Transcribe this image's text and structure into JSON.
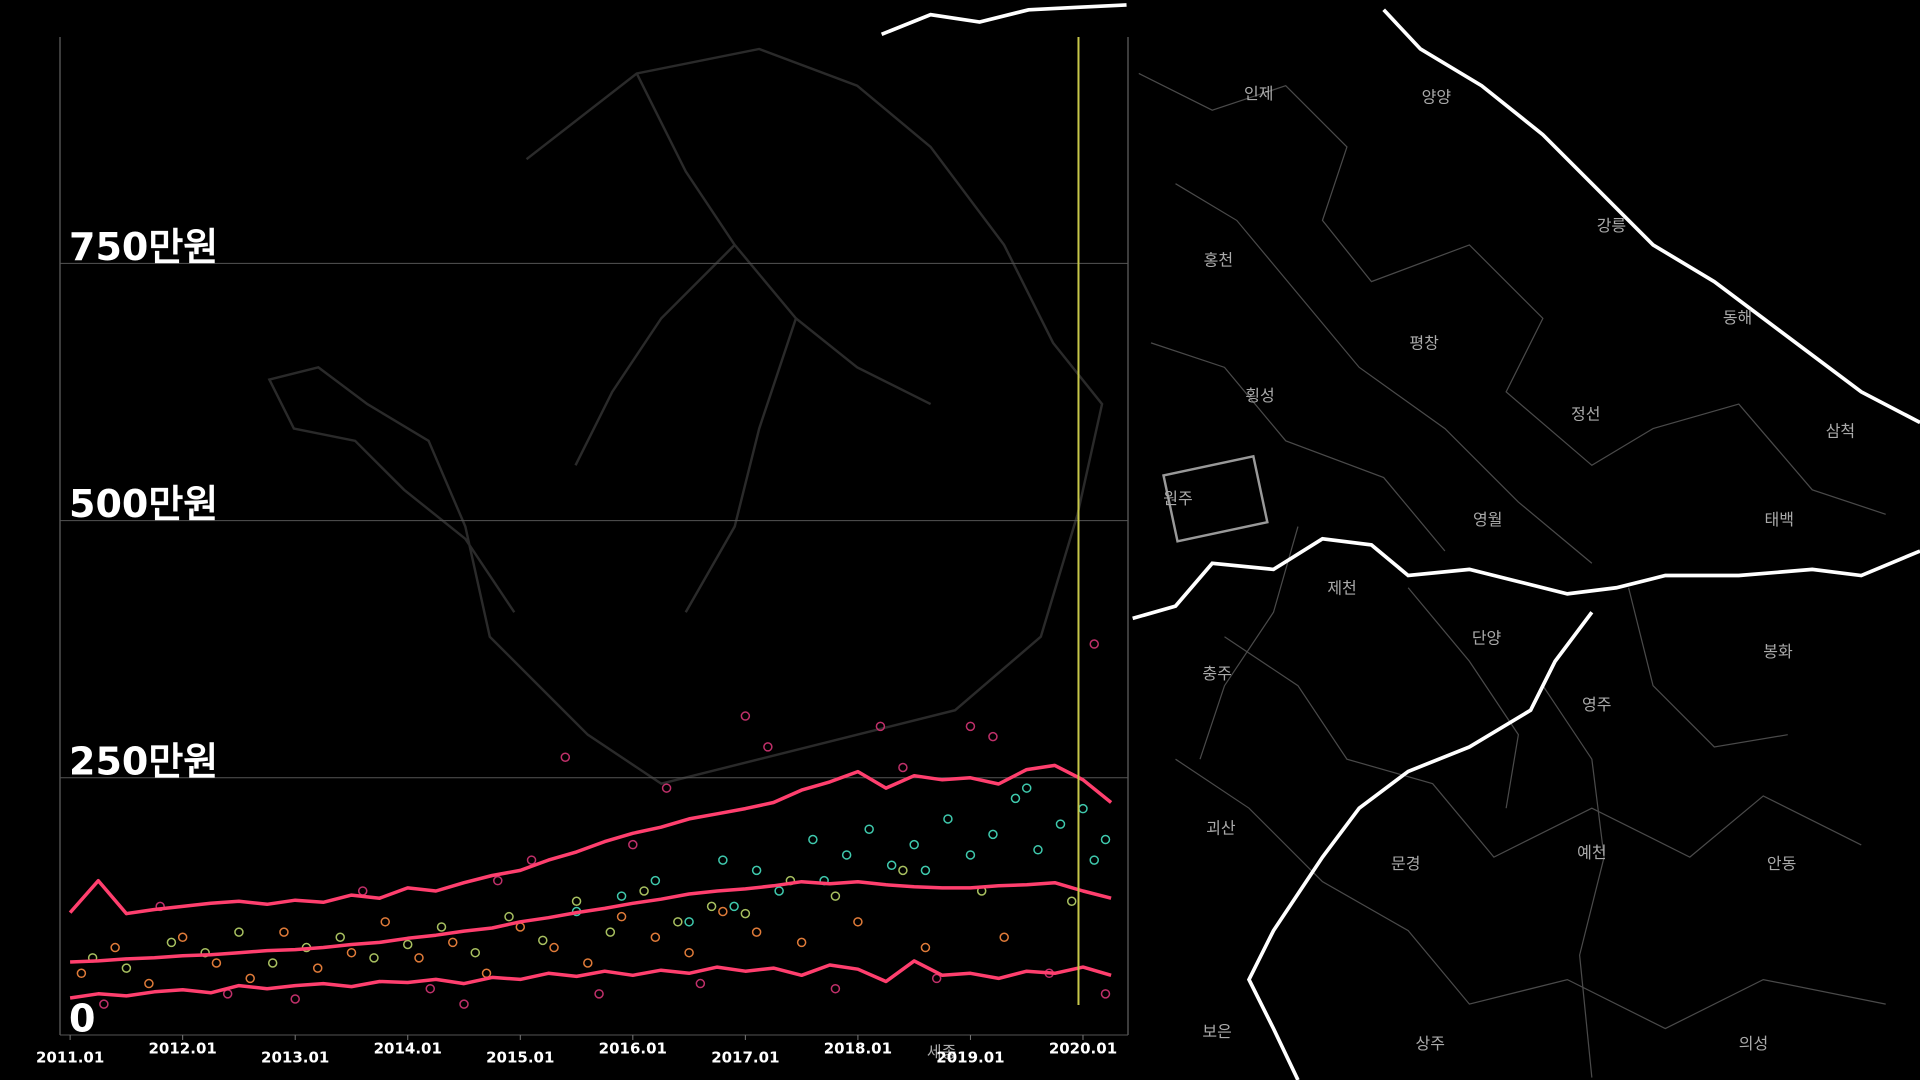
{
  "chart_data": {
    "type": "scatter",
    "xlim": [
      2010.91,
      2020.4
    ],
    "xticks": [
      {
        "value": 2011,
        "label": "2011.01"
      },
      {
        "value": 2012,
        "label": "2012.01"
      },
      {
        "value": 2013,
        "label": "2013.01"
      },
      {
        "value": 2014,
        "label": "2014.01"
      },
      {
        "value": 2015,
        "label": "2015.01"
      },
      {
        "value": 2016,
        "label": "2016.01"
      },
      {
        "value": 2017,
        "label": "2017.01"
      },
      {
        "value": 2018,
        "label": "2018.01"
      },
      {
        "value": 2019,
        "label": "2019.01"
      },
      {
        "value": 2020,
        "label": "2020.01"
      }
    ],
    "ylim": [
      0,
      970
    ],
    "yticks": [
      0,
      {
        "value": 250,
        "label": "250만원"
      },
      {
        "value": 500,
        "label": "500만원"
      },
      {
        "value": 750,
        "label": "750만원"
      }
    ],
    "grid": true,
    "highlight_x": 2019.96,
    "series": [
      {
        "color": "#3fc9ad",
        "x": [
          2015.5,
          2015.9,
          2016.2,
          2016.5,
          2016.8,
          2017.1,
          2017.3,
          2017.6,
          2017.9,
          2018.1,
          2018.3,
          2018.5,
          2018.8,
          2019.0,
          2019.2,
          2019.4,
          2019.6,
          2019.8,
          2020.0,
          2020.1,
          2020.2,
          2016.9,
          2017.7,
          2018.6,
          2019.5
        ],
        "values": [
          120,
          135,
          150,
          110,
          170,
          160,
          140,
          190,
          175,
          200,
          165,
          185,
          210,
          175,
          195,
          230,
          180,
          205,
          220,
          170,
          190,
          125,
          150,
          160,
          240
        ]
      },
      {
        "color": "#e07b39",
        "x": [
          2011.1,
          2011.4,
          2011.7,
          2012.0,
          2012.3,
          2012.6,
          2012.9,
          2013.2,
          2013.5,
          2013.8,
          2014.1,
          2014.4,
          2014.7,
          2015.0,
          2015.3,
          2015.6,
          2015.9,
          2016.2,
          2016.5,
          2016.8,
          2017.1,
          2017.5,
          2018.0,
          2018.6,
          2019.3
        ],
        "values": [
          60,
          85,
          50,
          95,
          70,
          55,
          100,
          65,
          80,
          110,
          75,
          90,
          60,
          105,
          85,
          70,
          115,
          95,
          80,
          120,
          100,
          90,
          110,
          85,
          95
        ]
      },
      {
        "color": "#a8c060",
        "x": [
          2011.2,
          2011.5,
          2011.9,
          2012.2,
          2012.5,
          2012.8,
          2013.1,
          2013.4,
          2013.7,
          2014.0,
          2014.3,
          2014.6,
          2014.9,
          2015.2,
          2015.5,
          2015.8,
          2016.1,
          2016.4,
          2016.7,
          2017.0,
          2017.4,
          2017.8,
          2018.4,
          2019.1,
          2019.9
        ],
        "values": [
          75,
          65,
          90,
          80,
          100,
          70,
          85,
          95,
          75,
          88,
          105,
          80,
          115,
          92,
          130,
          100,
          140,
          110,
          125,
          118,
          150,
          135,
          160,
          140,
          130
        ]
      },
      {
        "color": "#c0306a",
        "x": [
          2011.3,
          2011.8,
          2012.4,
          2013.0,
          2013.6,
          2014.2,
          2014.8,
          2015.4,
          2015.7,
          2016.0,
          2016.6,
          2017.2,
          2017.8,
          2018.2,
          2018.7,
          2019.2,
          2019.7,
          2020.1,
          2020.2,
          2016.3,
          2017.0,
          2018.4,
          2019.0,
          2015.1,
          2014.5
        ],
        "values": [
          30,
          125,
          40,
          35,
          140,
          45,
          150,
          270,
          40,
          185,
          50,
          280,
          45,
          300,
          55,
          290,
          60,
          380,
          40,
          240,
          310,
          260,
          300,
          170,
          30
        ]
      }
    ],
    "lines": {
      "x": [
        2011,
        2011.25,
        2011.5,
        2011.75,
        2012,
        2012.25,
        2012.5,
        2012.75,
        2013,
        2013.25,
        2013.5,
        2013.75,
        2014,
        2014.25,
        2014.5,
        2014.75,
        2015,
        2015.25,
        2015.5,
        2015.75,
        2016,
        2016.25,
        2016.5,
        2016.75,
        2017,
        2017.25,
        2017.5,
        2017.75,
        2018,
        2018.25,
        2018.5,
        2018.75,
        2019,
        2019.25,
        2019.5,
        2019.75,
        2020,
        2020.25
      ],
      "series": [
        {
          "color": "#ff3f6e",
          "values": [
            119,
            150,
            118,
            122,
            125,
            128,
            130,
            127,
            131,
            129,
            136,
            133,
            143,
            140,
            148,
            155,
            160,
            170,
            178,
            188,
            196,
            202,
            210,
            215,
            220,
            226,
            238,
            246,
            256,
            240,
            252,
            248,
            250,
            244,
            258,
            262,
            248,
            226
          ]
        },
        {
          "color": "#ff3f6e",
          "values": [
            71,
            72,
            74,
            75,
            77,
            78,
            80,
            82,
            83,
            85,
            88,
            90,
            94,
            97,
            101,
            104,
            110,
            114,
            119,
            123,
            128,
            132,
            137,
            140,
            142,
            145,
            149,
            147,
            149,
            146,
            144,
            143,
            143,
            145,
            146,
            148,
            140,
            133
          ]
        },
        {
          "color": "#ff3f6e",
          "values": [
            36,
            40,
            38,
            42,
            44,
            41,
            48,
            45,
            48,
            50,
            47,
            52,
            51,
            54,
            50,
            56,
            54,
            60,
            57,
            62,
            58,
            63,
            60,
            66,
            62,
            65,
            58,
            68,
            64,
            52,
            72,
            58,
            60,
            55,
            62,
            60,
            66,
            58
          ]
        }
      ]
    }
  },
  "map_labels": [
    "인제",
    "양양",
    "강릉",
    "홍천",
    "평창",
    "횡성",
    "정선",
    "삼척",
    "동해",
    "태백",
    "영월",
    "제천",
    "단양",
    "충주",
    "영주",
    "봉화",
    "괴산",
    "문경",
    "예천",
    "안동",
    "보은",
    "상주",
    "의성",
    "세종",
    "원주"
  ]
}
